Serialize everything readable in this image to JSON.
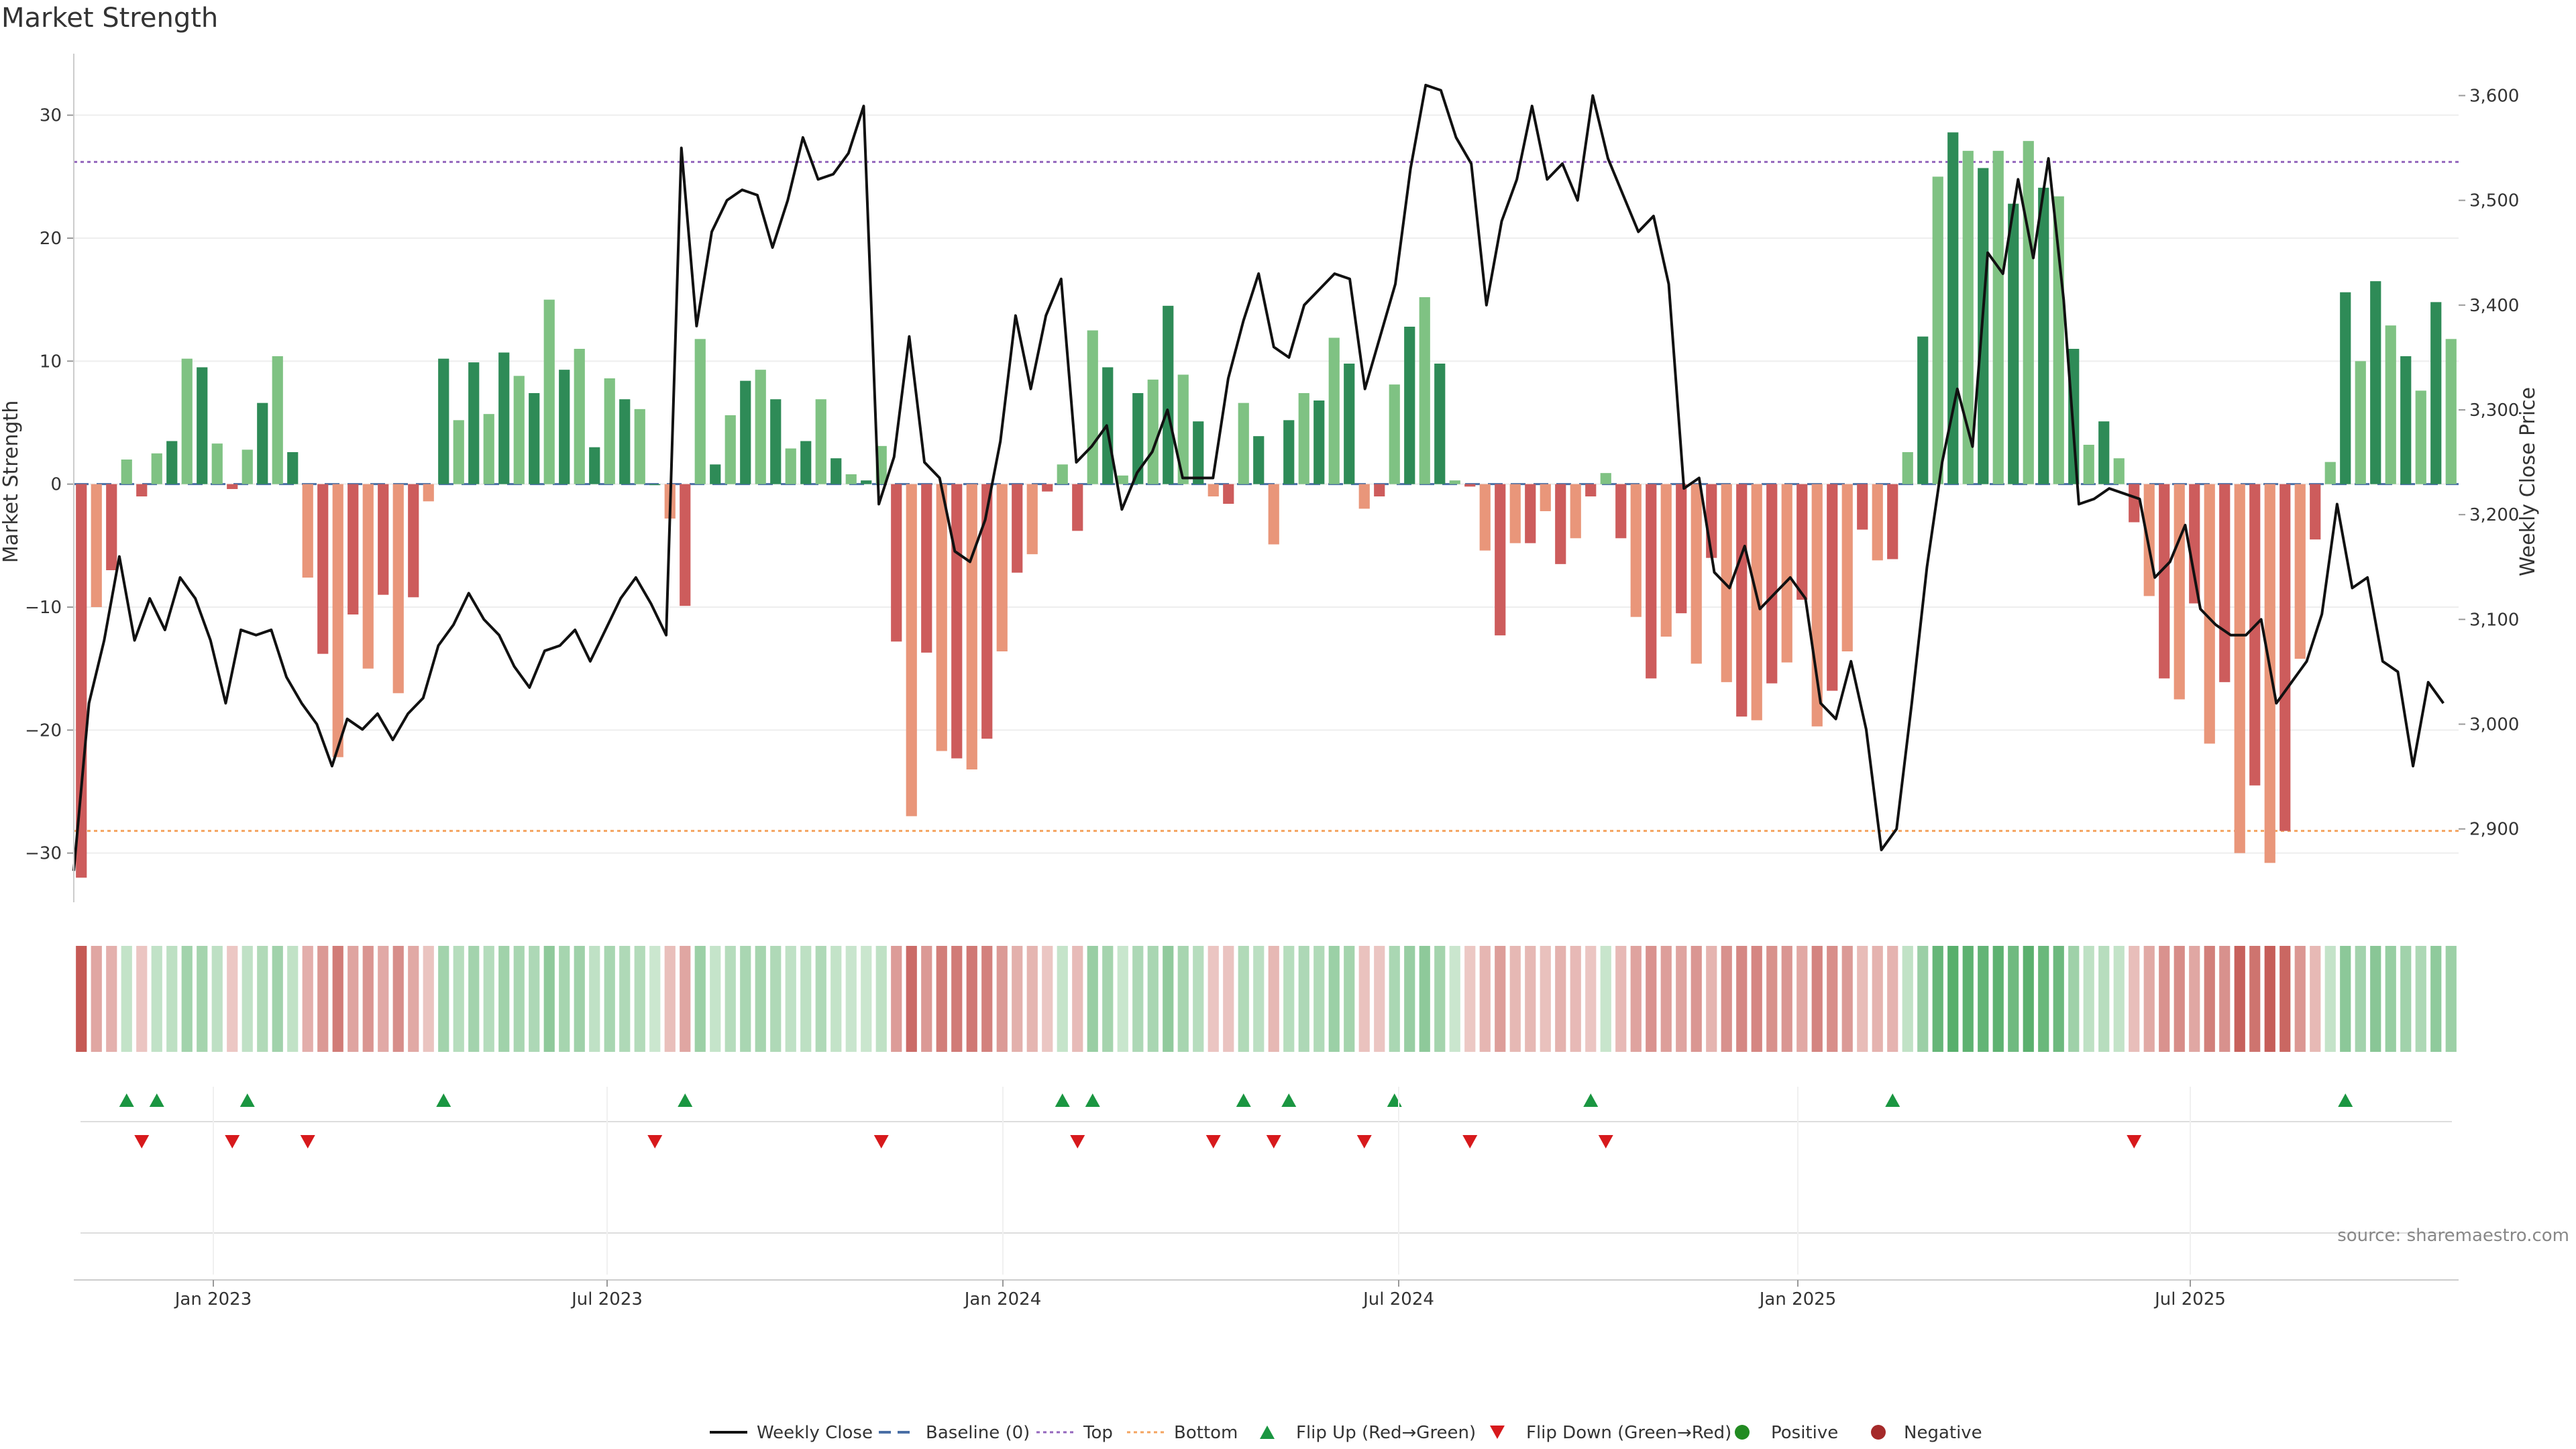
{
  "title": "Market Strength",
  "source": "source: sharemaestro.com",
  "colors": {
    "pos_dark": "#2e8b57",
    "pos_light": "#7fc283",
    "neg_dark": "#cd5c5c",
    "neg_light": "#e9967a",
    "line": "#111111",
    "top": "#9467bd",
    "bottom": "#f4a460",
    "baseline": "#4a6fa5",
    "flip_up": "#1a9641",
    "flip_down": "#d7191c",
    "positive": "#228b22",
    "negative": "#a52a2a"
  },
  "chart_data": {
    "type": "bar",
    "title": "Market Strength",
    "ylabel": "Market Strength",
    "y2label": "Weekly Close Price",
    "xlabel": "",
    "x_ticks": [
      "Jan 2023",
      "Jul 2023",
      "Jan 2024",
      "Jul 2024",
      "Jan 2025",
      "Jul 2025"
    ],
    "y_ticks": [
      -30,
      -20,
      -10,
      0,
      10,
      20,
      30
    ],
    "y2_ticks": [
      "2,900",
      "3,000",
      "3,100",
      "3,200",
      "3,300",
      "3,400",
      "3,500",
      "3,600"
    ],
    "ylim": [
      -34,
      35
    ],
    "y2lim": [
      2830,
      3640
    ],
    "top_level": 26.2,
    "bottom_level": -28.2,
    "legend": [
      "Weekly Close",
      "Baseline (0)",
      "Top",
      "Bottom",
      "Flip Up (Red→Green)",
      "Flip Down (Green→Red)",
      "Positive",
      "Negative"
    ],
    "legend_position": "bottom-center",
    "strength": [
      -32,
      -10,
      -7,
      2,
      -1,
      2.5,
      3.5,
      10.2,
      9.5,
      3.3,
      -0.4,
      2.8,
      6.6,
      10.4,
      2.6,
      -7.6,
      -13.8,
      -22.2,
      -10.6,
      -15,
      -9,
      -17,
      -9.2,
      -1.4,
      10.2,
      5.2,
      9.9,
      5.7,
      10.7,
      8.8,
      7.4,
      15,
      9.3,
      11,
      3,
      8.6,
      6.9,
      6.1,
      0,
      -2.8,
      -9.9,
      11.8,
      1.6,
      5.6,
      8.4,
      9.3,
      6.9,
      2.9,
      3.5,
      6.9,
      2.1,
      0.8,
      0.3,
      3.1,
      -12.8,
      -27,
      -13.7,
      -21.7,
      -22.3,
      -23.2,
      -20.7,
      -13.6,
      -7.2,
      -5.7,
      -0.6,
      1.6,
      -3.8,
      12.5,
      9.5,
      0.7,
      7.4,
      8.5,
      14.5,
      8.9,
      5.1,
      -1,
      -1.6,
      6.6,
      3.9,
      -4.9,
      5.2,
      7.4,
      6.8,
      11.9,
      9.8,
      -2,
      -1,
      8.1,
      12.8,
      15.2,
      9.8,
      0.3,
      -0.2,
      -5.4,
      -12.3,
      -4.8,
      -4.8,
      -2.2,
      -6.5,
      -4.4,
      -1,
      0.9,
      -4.4,
      -10.8,
      -15.8,
      -12.4,
      -10.5,
      -14.6,
      -6,
      -16.1,
      -18.9,
      -19.2,
      -16.2,
      -14.5,
      -9.4,
      -19.7,
      -16.8,
      -13.6,
      -3.7,
      -6.2,
      -6.1,
      2.6,
      12,
      25,
      28.6,
      27.1,
      25.7,
      27.1,
      22.8,
      27.9,
      24.1,
      23.4,
      11,
      3.2,
      5.1,
      2.1,
      -3.1,
      -9.1,
      -15.8,
      -17.5,
      -9.7,
      -21.1,
      -16.1,
      -30,
      -24.5,
      -30.8,
      -28.2,
      -14.2,
      -4.5,
      1.8,
      15.6,
      10,
      16.5,
      12.9,
      10.4,
      7.6,
      14.8,
      11.8
    ],
    "close_anchors": [
      [
        0,
        2860
      ],
      [
        1,
        3020
      ],
      [
        2,
        3080
      ],
      [
        3,
        3160
      ],
      [
        4,
        3080
      ],
      [
        5,
        3120
      ],
      [
        6,
        3090
      ],
      [
        7,
        3140
      ],
      [
        8,
        3120
      ],
      [
        9,
        3080
      ],
      [
        10,
        3020
      ],
      [
        11,
        3090
      ],
      [
        12,
        3085
      ],
      [
        13,
        3090
      ],
      [
        14,
        3045
      ],
      [
        15,
        3020
      ],
      [
        16,
        3000
      ],
      [
        17,
        2960
      ],
      [
        18,
        3005
      ],
      [
        19,
        2995
      ],
      [
        20,
        3010
      ],
      [
        21,
        2985
      ],
      [
        22,
        3010
      ],
      [
        23,
        3025
      ],
      [
        24,
        3075
      ],
      [
        25,
        3095
      ],
      [
        26,
        3125
      ],
      [
        27,
        3100
      ],
      [
        28,
        3085
      ],
      [
        29,
        3055
      ],
      [
        30,
        3035
      ],
      [
        31,
        3070
      ],
      [
        32,
        3075
      ],
      [
        33,
        3090
      ],
      [
        34,
        3060
      ],
      [
        35,
        3090
      ],
      [
        36,
        3120
      ],
      [
        37,
        3140
      ],
      [
        38,
        3115
      ],
      [
        39,
        3085
      ],
      [
        40,
        3550
      ],
      [
        41,
        3380
      ],
      [
        42,
        3470
      ],
      [
        43,
        3500
      ],
      [
        44,
        3510
      ],
      [
        45,
        3505
      ],
      [
        46,
        3455
      ],
      [
        47,
        3500
      ],
      [
        48,
        3560
      ],
      [
        49,
        3520
      ],
      [
        50,
        3525
      ],
      [
        51,
        3545
      ],
      [
        52,
        3590
      ],
      [
        53,
        3210
      ],
      [
        54,
        3255
      ],
      [
        55,
        3370
      ],
      [
        56,
        3250
      ],
      [
        57,
        3235
      ],
      [
        58,
        3165
      ],
      [
        59,
        3155
      ],
      [
        60,
        3195
      ],
      [
        61,
        3270
      ],
      [
        62,
        3390
      ],
      [
        63,
        3320
      ],
      [
        64,
        3390
      ],
      [
        65,
        3425
      ],
      [
        66,
        3250
      ],
      [
        67,
        3265
      ],
      [
        68,
        3285
      ],
      [
        69,
        3205
      ],
      [
        70,
        3240
      ],
      [
        71,
        3260
      ],
      [
        72,
        3300
      ],
      [
        73,
        3235
      ],
      [
        74,
        3235
      ],
      [
        75,
        3235
      ],
      [
        76,
        3330
      ],
      [
        77,
        3385
      ],
      [
        78,
        3430
      ],
      [
        79,
        3360
      ],
      [
        80,
        3350
      ],
      [
        81,
        3400
      ],
      [
        82,
        3415
      ],
      [
        83,
        3430
      ],
      [
        84,
        3425
      ],
      [
        85,
        3320
      ],
      [
        86,
        3370
      ],
      [
        87,
        3420
      ],
      [
        88,
        3530
      ],
      [
        89,
        3610
      ],
      [
        90,
        3605
      ],
      [
        91,
        3560
      ],
      [
        92,
        3535
      ],
      [
        93,
        3400
      ],
      [
        94,
        3480
      ],
      [
        95,
        3520
      ],
      [
        96,
        3590
      ],
      [
        97,
        3520
      ],
      [
        98,
        3535
      ],
      [
        99,
        3500
      ],
      [
        100,
        3600
      ],
      [
        101,
        3540
      ],
      [
        102,
        3505
      ],
      [
        103,
        3470
      ],
      [
        104,
        3485
      ],
      [
        105,
        3420
      ],
      [
        106,
        3225
      ],
      [
        107,
        3235
      ],
      [
        108,
        3145
      ],
      [
        109,
        3130
      ],
      [
        110,
        3170
      ],
      [
        111,
        3110
      ],
      [
        112,
        3125
      ],
      [
        113,
        3140
      ],
      [
        114,
        3120
      ],
      [
        115,
        3020
      ],
      [
        116,
        3005
      ],
      [
        117,
        3060
      ],
      [
        118,
        2995
      ],
      [
        119,
        2880
      ],
      [
        120,
        2900
      ],
      [
        121,
        3020
      ],
      [
        122,
        3150
      ],
      [
        123,
        3250
      ],
      [
        124,
        3320
      ],
      [
        125,
        3265
      ],
      [
        126,
        3450
      ],
      [
        127,
        3430
      ],
      [
        128,
        3520
      ],
      [
        129,
        3445
      ],
      [
        130,
        3540
      ],
      [
        131,
        3405
      ],
      [
        132,
        3210
      ],
      [
        133,
        3215
      ],
      [
        134,
        3225
      ],
      [
        135,
        3220
      ],
      [
        136,
        3215
      ],
      [
        137,
        3140
      ],
      [
        138,
        3155
      ],
      [
        139,
        3190
      ],
      [
        140,
        3110
      ],
      [
        141,
        3095
      ],
      [
        142,
        3085
      ],
      [
        143,
        3085
      ],
      [
        144,
        3100
      ],
      [
        145,
        3020
      ],
      [
        146,
        3040
      ],
      [
        147,
        3060
      ],
      [
        148,
        3105
      ],
      [
        149,
        3210
      ],
      [
        150,
        3130
      ],
      [
        151,
        3140
      ],
      [
        152,
        3060
      ],
      [
        153,
        3050
      ],
      [
        154,
        2960
      ],
      [
        155,
        3040
      ],
      [
        156,
        3020
      ]
    ],
    "flip_up_idx": [
      3,
      5,
      11,
      24,
      40,
      65,
      67,
      77,
      80,
      87,
      100,
      120,
      150
    ],
    "flip_down_idx": [
      4,
      10,
      15,
      38,
      53,
      66,
      75,
      79,
      85,
      92,
      101,
      136
    ]
  }
}
